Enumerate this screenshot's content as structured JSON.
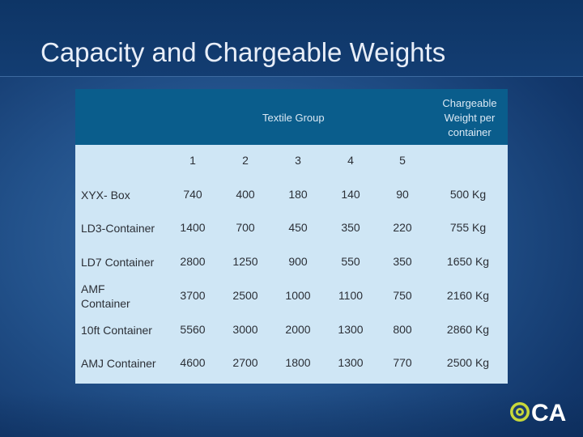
{
  "slide": {
    "title": "Capacity and Chargeable Weights"
  },
  "table": {
    "group_header": "Textile Group",
    "chargeable_header_lines": [
      "Chargeable",
      "Weight per",
      "container"
    ],
    "group_columns": [
      "1",
      "2",
      "3",
      "4",
      "5"
    ],
    "rows": [
      {
        "label": [
          "XYX- Box"
        ],
        "values": [
          "740",
          "400",
          "180",
          "140",
          "90"
        ],
        "chargeable": "500 Kg"
      },
      {
        "label": [
          "LD3-Container"
        ],
        "values": [
          "1400",
          "700",
          "450",
          "350",
          "220"
        ],
        "chargeable": "755 Kg"
      },
      {
        "label": [
          "LD7 Container"
        ],
        "values": [
          "2800",
          "1250",
          "900",
          "550",
          "350"
        ],
        "chargeable": "1650 Kg"
      },
      {
        "label": [
          "AMF",
          "Container"
        ],
        "values": [
          "3700",
          "2500",
          "1000",
          "1100",
          "750"
        ],
        "chargeable": "2160 Kg"
      },
      {
        "label": [
          "10ft Container"
        ],
        "values": [
          "5560",
          "3000",
          "2000",
          "1300",
          "800"
        ],
        "chargeable": "2860 Kg"
      },
      {
        "label": [
          "AMJ Container"
        ],
        "values": [
          "4600",
          "2700",
          "1800",
          "1300",
          "770"
        ],
        "chargeable": "2500 Kg"
      }
    ]
  },
  "logo": {
    "text": "CA",
    "color": "#ffffff",
    "accent": "#c8d83a"
  }
}
